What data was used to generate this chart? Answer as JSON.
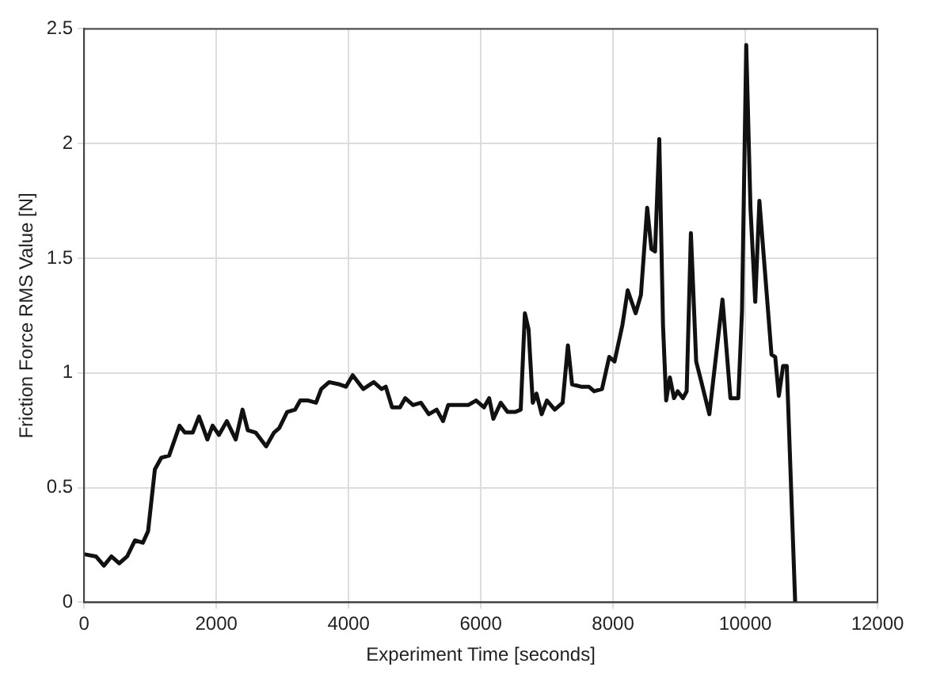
{
  "chart_data": {
    "type": "line",
    "xlabel": "Experiment Time [seconds]",
    "ylabel": "Friction Force RMS Value [N]",
    "xlim": [
      0,
      12000
    ],
    "ylim": [
      0,
      2.5
    ],
    "xticks": [
      0,
      2000,
      4000,
      6000,
      8000,
      10000,
      12000
    ],
    "yticks": [
      0,
      0.5,
      1,
      1.5,
      2,
      2.5
    ],
    "grid": true,
    "legend": false,
    "marker": "none",
    "line_style": "solid",
    "series": [
      {
        "color": "#111111",
        "x": [
          0,
          180,
          300,
          413,
          532,
          651,
          770,
          889,
          968,
          1071,
          1167,
          1286,
          1444,
          1524,
          1643,
          1738,
          1865,
          1944,
          2040,
          2159,
          2294,
          2397,
          2476,
          2595,
          2754,
          2873,
          2952,
          3071,
          3190,
          3270,
          3389,
          3508,
          3587,
          3706,
          3865,
          3960,
          4063,
          4222,
          4381,
          4500,
          4563,
          4659,
          4778,
          4857,
          4976,
          5095,
          5214,
          5333,
          5429,
          5508,
          5651,
          5810,
          5929,
          6048,
          6127,
          6190,
          6302,
          6405,
          6524,
          6604,
          6667,
          6723,
          6786,
          6842,
          6921,
          7000,
          7119,
          7238,
          7318,
          7381,
          7516,
          7635,
          7714,
          7834,
          7943,
          8023,
          8143,
          8222,
          8342,
          8422,
          8517,
          8581,
          8636,
          8700,
          8756,
          8804,
          8860,
          8923,
          8979,
          9058,
          9114,
          9178,
          9258,
          9337,
          9457,
          9656,
          9776,
          9895,
          9951,
          10015,
          10079,
          10151,
          10214,
          10397,
          10453,
          10508,
          10572,
          10628,
          10755
        ],
        "values": [
          0.21,
          0.2,
          0.16,
          0.2,
          0.17,
          0.2,
          0.27,
          0.26,
          0.31,
          0.58,
          0.63,
          0.64,
          0.77,
          0.74,
          0.74,
          0.81,
          0.71,
          0.77,
          0.73,
          0.79,
          0.71,
          0.84,
          0.75,
          0.74,
          0.68,
          0.74,
          0.76,
          0.83,
          0.84,
          0.88,
          0.88,
          0.87,
          0.93,
          0.96,
          0.95,
          0.94,
          0.99,
          0.93,
          0.96,
          0.93,
          0.94,
          0.85,
          0.85,
          0.89,
          0.86,
          0.87,
          0.82,
          0.84,
          0.79,
          0.86,
          0.86,
          0.86,
          0.88,
          0.85,
          0.89,
          0.8,
          0.87,
          0.83,
          0.83,
          0.84,
          1.26,
          1.19,
          0.87,
          0.91,
          0.82,
          0.88,
          0.84,
          0.87,
          1.12,
          0.95,
          0.94,
          0.94,
          0.92,
          0.93,
          1.07,
          1.05,
          1.21,
          1.36,
          1.26,
          1.34,
          1.72,
          1.54,
          1.53,
          2.02,
          1.21,
          0.88,
          0.98,
          0.89,
          0.92,
          0.89,
          0.92,
          1.61,
          1.05,
          0.96,
          0.82,
          1.32,
          0.89,
          0.89,
          1.27,
          2.43,
          1.72,
          1.31,
          1.75,
          1.08,
          1.07,
          0.9,
          1.03,
          1.03,
          0
        ]
      }
    ]
  }
}
